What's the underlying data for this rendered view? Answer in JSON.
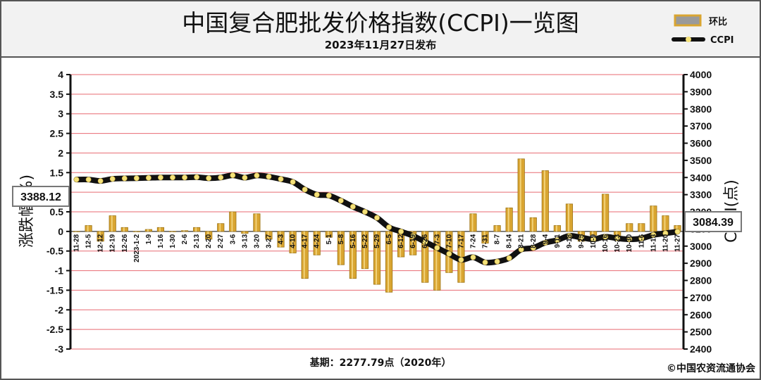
{
  "header": {
    "title": "中国复合肥批发价格指数(CCPI)一览图",
    "subtitle": "2023年11月27日发布"
  },
  "legend": {
    "bar_label": "环比",
    "line_label": "CCPI"
  },
  "footer": {
    "base": "基期：2277.79点（2020年）",
    "copyright": "©中国农资流通协会"
  },
  "callouts": {
    "left": "3388.12",
    "right": "3084.39"
  },
  "colors": {
    "grid": "#e86a72",
    "bar": "#d9a531",
    "line": "#111111",
    "marker": "#f4e27a"
  },
  "chart_data": {
    "type": "bar",
    "title": "中国复合肥批发价格指数(CCPI)一览图",
    "left_axis": {
      "label": "涨跌幅(%)",
      "ylim": [
        -3,
        4
      ],
      "ticks": [
        "4",
        "3.5",
        "3",
        "2.5",
        "2",
        "1.5",
        "1",
        "0.5",
        "0",
        "-0.5",
        "-1",
        "-1.5",
        "-2",
        "-2.5",
        "-3"
      ]
    },
    "right_axis": {
      "label": "CCPI(点)",
      "ylim": [
        2400,
        4000
      ],
      "ticks": [
        "4000",
        "3900",
        "3800",
        "3700",
        "3600",
        "3500",
        "3400",
        "3300",
        "3200",
        "3100",
        "3000",
        "2900",
        "2800",
        "2700",
        "2600",
        "2500",
        "2400"
      ]
    },
    "x_tick_labels": [
      "11-28",
      "12-5",
      "12-12",
      "12-19",
      "12-26",
      "2023-1-2",
      "1-9",
      "1-16",
      "1-30",
      "2-6",
      "2-13",
      "2-20",
      "2-27",
      "3-6",
      "3-13",
      "3-20",
      "3-27",
      "4-3",
      "4-10",
      "4-17",
      "4-24",
      "5-1",
      "5-8",
      "5-16",
      "5-22",
      "5-29",
      "6-5",
      "6-12",
      "6-19",
      "6-26",
      "7-3",
      "7-10",
      "7-17",
      "7-24",
      "7-31",
      "8-7",
      "8-14",
      "8-21",
      "8-28",
      "9-4",
      "9-11",
      "9-18",
      "9-25",
      "10-9",
      "10-16",
      "10-23",
      "10-30",
      "11-6",
      "11-13",
      "11-20",
      "11-27"
    ],
    "series": [
      {
        "name": "环比",
        "type": "bar",
        "values": [
          0.0,
          0.15,
          -0.25,
          0.4,
          0.1,
          0.0,
          0.05,
          0.1,
          0.0,
          0.02,
          0.1,
          -0.2,
          0.2,
          0.5,
          -0.05,
          0.45,
          -0.2,
          -0.4,
          -0.55,
          -1.2,
          -0.6,
          -0.15,
          -0.85,
          -1.2,
          -0.95,
          -1.35,
          -1.55,
          -0.65,
          -0.6,
          -1.3,
          -1.5,
          -1.05,
          -1.3,
          0.45,
          -0.3,
          0.15,
          0.6,
          1.85,
          0.35,
          1.55,
          0.15,
          0.7,
          -0.25,
          -0.1,
          0.95,
          -0.15,
          0.2,
          0.2,
          0.65,
          0.4,
          0.15
        ]
      },
      {
        "name": "CCPI",
        "type": "line",
        "values": [
          3388,
          3388,
          3380,
          3392,
          3395,
          3396,
          3398,
          3400,
          3400,
          3400,
          3402,
          3396,
          3400,
          3413,
          3399,
          3412,
          3405,
          3391,
          3374,
          3330,
          3300,
          3295,
          3265,
          3230,
          3200,
          3165,
          3110,
          3085,
          3060,
          3025,
          2990,
          2955,
          2920,
          2935,
          2905,
          2910,
          2930,
          2980,
          2990,
          3020,
          3035,
          3060,
          3050,
          3040,
          3055,
          3045,
          3040,
          3045,
          3065,
          3075,
          3084.39
        ]
      }
    ]
  }
}
